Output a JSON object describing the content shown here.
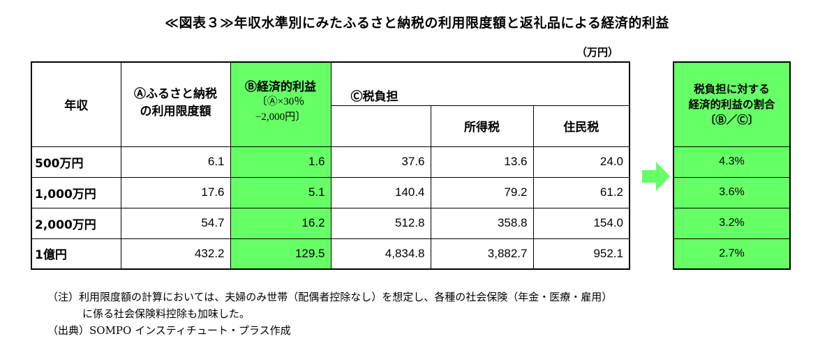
{
  "title": "≪図表３≫年収水準別にみたふるさと納税の利用限度額と返礼品による経済的利益",
  "unit": "（万円）",
  "headers": {
    "income": "年収",
    "limit_line1": "Ⓐふるさと納税",
    "limit_line2": "の利用限度額",
    "benefit": "Ⓑ経済的利益",
    "benefit_sub1": "〔Ⓐ×30％",
    "benefit_sub2": "−2,000円〕",
    "tax": "Ⓒ税負担",
    "income_tax": "所得税",
    "resident_tax": "住民税"
  },
  "rows": [
    {
      "income": "500万円",
      "limit": "6.1",
      "benefit": "1.6",
      "tax": "37.6",
      "income_tax": "13.6",
      "resident_tax": "24.0",
      "ratio": "4.3%"
    },
    {
      "income": "1,000万円",
      "limit": "17.6",
      "benefit": "5.1",
      "tax": "140.4",
      "income_tax": "79.2",
      "resident_tax": "61.2",
      "ratio": "3.6%"
    },
    {
      "income": "2,000万円",
      "limit": "54.7",
      "benefit": "16.2",
      "tax": "512.8",
      "income_tax": "358.8",
      "resident_tax": "154.0",
      "ratio": "3.2%"
    },
    {
      "income": "1億円",
      "limit": "432.2",
      "benefit": "129.5",
      "tax": "4,834.8",
      "income_tax": "3,882.7",
      "resident_tax": "952.1",
      "ratio": "2.7%"
    }
  ],
  "ratio_header": {
    "line1": "税負担に対する",
    "line2": "経済的利益の割合",
    "line3": "〔Ⓑ／Ⓒ〕"
  },
  "notes": {
    "note_line1": "（注）利用限度額の計算においては、夫婦のみ世帯（配偶者控除なし）を想定し、各種の社会保険（年金・医療・雇用）",
    "note_line2": "に係る社会保険料控除も加味した。",
    "source": "（出典）SOMPO インスティチュート・プラス作成"
  },
  "colors": {
    "highlight": "#66ff66",
    "arrow": "#66ff66"
  }
}
